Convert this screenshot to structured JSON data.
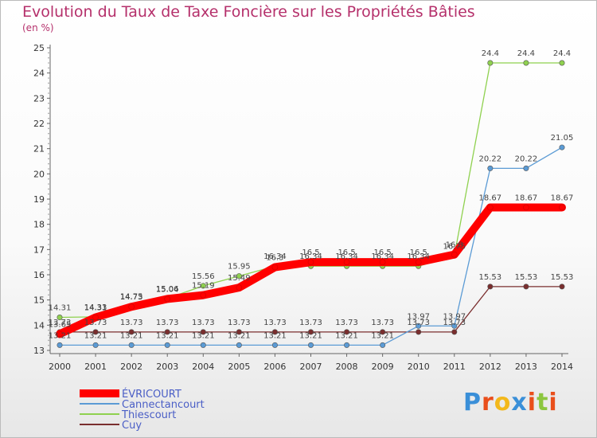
{
  "chart_data": {
    "type": "line",
    "title": "Evolution du Taux de Taxe Foncière sur les Propriétés Bâties",
    "unit_label": "(en %)",
    "x": [
      "2000",
      "2001",
      "2002",
      "2003",
      "2004",
      "2005",
      "2006",
      "2007",
      "2008",
      "2009",
      "2010",
      "2011",
      "2012",
      "2013",
      "2014"
    ],
    "ylim": [
      13,
      25
    ],
    "yticks": [
      "13",
      "14",
      "15",
      "16",
      "17",
      "18",
      "19",
      "20",
      "21",
      "22",
      "23",
      "24",
      "25"
    ],
    "series": [
      {
        "name": "ÉVRICOURT",
        "color": "#ff0000",
        "values": [
          13.65,
          14.31,
          14.73,
          15.04,
          15.19,
          15.49,
          16.3,
          16.5,
          16.5,
          16.5,
          16.5,
          16.8,
          18.67,
          18.67,
          18.67
        ],
        "labels": [
          "13.65",
          "14.31",
          "14.73",
          "15.04",
          "15.19",
          "15.49",
          "16.3",
          "16.5",
          "16.5",
          "16.5",
          "16.5",
          "16.8",
          "18.67",
          "18.67",
          "18.67"
        ]
      },
      {
        "name": "Cannectancourt",
        "color": "#5b9bd5",
        "values": [
          13.21,
          13.21,
          13.21,
          13.21,
          13.21,
          13.21,
          13.21,
          13.21,
          13.21,
          13.21,
          13.97,
          13.97,
          20.22,
          20.22,
          21.05
        ],
        "labels": [
          "13.21",
          "13.21",
          "13.21",
          "13.21",
          "13.21",
          "13.21",
          "13.21",
          "13.21",
          "13.21",
          "13.21",
          "13.97",
          "13.97",
          "20.22",
          "20.22",
          "21.05"
        ]
      },
      {
        "name": "Thiescourt",
        "color": "#8fd14f",
        "values": [
          14.31,
          14.33,
          14.75,
          15.06,
          15.56,
          15.95,
          16.34,
          16.34,
          16.34,
          16.34,
          16.34,
          16.75,
          24.4,
          24.4,
          24.4
        ],
        "labels": [
          "14.31",
          "14.33",
          "14.75",
          "15.06",
          "15.56",
          "15.95",
          "16.34",
          "16.34",
          "16.34",
          "16.34",
          "16.34",
          "16.75",
          "24.4",
          "24.4",
          "24.4"
        ]
      },
      {
        "name": "Cuy",
        "color": "#7a2e2e",
        "values": [
          13.73,
          13.73,
          13.73,
          13.73,
          13.73,
          13.73,
          13.73,
          13.73,
          13.73,
          13.73,
          13.73,
          13.73,
          15.53,
          15.53,
          15.53
        ],
        "labels": [
          "13.73",
          "13.73",
          "13.73",
          "13.73",
          "13.73",
          "13.73",
          "13.73",
          "13.73",
          "13.73",
          "13.73",
          "13.73",
          "13.73",
          "15.53",
          "15.53",
          "15.53"
        ]
      }
    ]
  },
  "logo": {
    "letters": [
      "P",
      "r",
      "o",
      "x",
      "i",
      "t",
      "i"
    ],
    "colors": [
      "#3a8fd8",
      "#e94e1b",
      "#f3b81b",
      "#3a8fd8",
      "#e94e1b",
      "#8cc63f",
      "#e94e1b"
    ]
  }
}
